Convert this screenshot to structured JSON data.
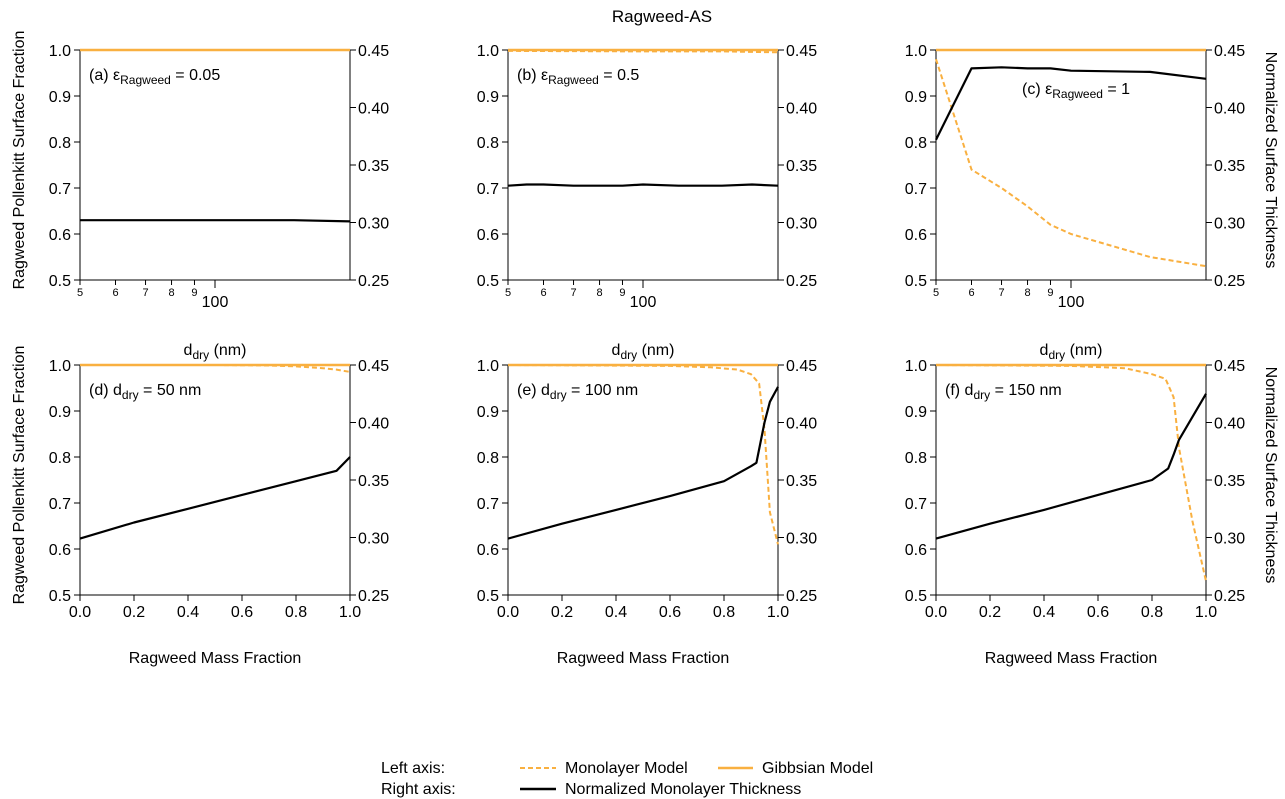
{
  "figure_title": "Ragweed-AS",
  "colors": {
    "monolayer": "#F9B040",
    "gibbsian": "#F9B040",
    "thickness": "#000000"
  },
  "legend": {
    "left_axis_label": "Left axis:",
    "right_axis_label": "Right axis:",
    "monolayer_label": "Monolayer Model",
    "gibbsian_label": "Gibbsian Model",
    "thickness_label": "Normalized Monolayer Thickness"
  },
  "row_labels": {
    "left": "Ragweed Pollenkitt Surface Fraction",
    "right": "Normalized Surface Thickness"
  },
  "chart_data": [
    {
      "type": "line",
      "panel": "(a)",
      "annotation": {
        "prefix": "(a) ε",
        "sub": "Ragweed",
        "suffix": " = 0.05"
      },
      "x_scale": "log",
      "xlim": [
        50,
        200
      ],
      "xlabel": "d",
      "xlabel_sub": "dry",
      "xlabel_suffix": " (nm)",
      "xticks": [
        50,
        60,
        70,
        80,
        90,
        100
      ],
      "xtick_labels": [
        "5",
        "6",
        "7",
        "8",
        "9",
        "100"
      ],
      "ylim": [
        0.5,
        1.0
      ],
      "yticks": [
        "0.5",
        "0.6",
        "0.7",
        "0.8",
        "0.9",
        "1.0"
      ],
      "y2lim": [
        0.25,
        0.45
      ],
      "y2ticks": [
        "0.25",
        "0.30",
        "0.35",
        "0.40",
        "0.45"
      ],
      "series": [
        {
          "name": "Monolayer Model",
          "axis": "left",
          "style": "dashed",
          "x": [
            50,
            200
          ],
          "y": [
            1.0,
            1.0
          ]
        },
        {
          "name": "Gibbsian Model",
          "axis": "left",
          "style": "solid",
          "x": [
            50,
            200
          ],
          "y": [
            1.0,
            1.0
          ]
        },
        {
          "name": "Normalized Monolayer Thickness",
          "axis": "right",
          "style": "solid",
          "x": [
            50,
            60,
            70,
            80,
            90,
            100,
            150,
            200
          ],
          "y": [
            0.302,
            0.302,
            0.302,
            0.302,
            0.302,
            0.302,
            0.302,
            0.301
          ]
        }
      ]
    },
    {
      "type": "line",
      "panel": "(b)",
      "annotation": {
        "prefix": "(b) ε",
        "sub": "Ragweed",
        "suffix": " = 0.5"
      },
      "x_scale": "log",
      "xlim": [
        50,
        200
      ],
      "xlabel": "d",
      "xlabel_sub": "dry",
      "xlabel_suffix": " (nm)",
      "xticks": [
        50,
        60,
        70,
        80,
        90,
        100
      ],
      "xtick_labels": [
        "5",
        "6",
        "7",
        "8",
        "9",
        "100"
      ],
      "ylim": [
        0.5,
        1.0
      ],
      "yticks": [
        "0.5",
        "0.6",
        "0.7",
        "0.8",
        "0.9",
        "1.0"
      ],
      "y2lim": [
        0.25,
        0.45
      ],
      "y2ticks": [
        "0.25",
        "0.30",
        "0.35",
        "0.40",
        "0.45"
      ],
      "series": [
        {
          "name": "Monolayer Model",
          "axis": "left",
          "style": "dashed",
          "x": [
            50,
            100,
            150,
            200
          ],
          "y": [
            0.998,
            0.997,
            0.997,
            0.995
          ]
        },
        {
          "name": "Gibbsian Model",
          "axis": "left",
          "style": "solid",
          "x": [
            50,
            200
          ],
          "y": [
            1.0,
            1.0
          ]
        },
        {
          "name": "Normalized Monolayer Thickness",
          "axis": "right",
          "style": "solid",
          "x": [
            50,
            55,
            60,
            70,
            80,
            90,
            100,
            120,
            150,
            175,
            200
          ],
          "y": [
            0.332,
            0.333,
            0.333,
            0.332,
            0.332,
            0.332,
            0.333,
            0.332,
            0.332,
            0.333,
            0.332
          ]
        }
      ]
    },
    {
      "type": "line",
      "panel": "(c)",
      "annotation": {
        "prefix": "(c) ε",
        "sub": "Ragweed",
        "suffix": " = 1"
      },
      "x_scale": "log",
      "xlim": [
        50,
        200
      ],
      "xlabel": "d",
      "xlabel_sub": "dry",
      "xlabel_suffix": " (nm)",
      "xticks": [
        50,
        60,
        70,
        80,
        90,
        100
      ],
      "xtick_labels": [
        "5",
        "6",
        "7",
        "8",
        "9",
        "100"
      ],
      "ylim": [
        0.5,
        1.0
      ],
      "yticks": [
        "0.5",
        "0.6",
        "0.7",
        "0.8",
        "0.9",
        "1.0"
      ],
      "y2lim": [
        0.25,
        0.45
      ],
      "y2ticks": [
        "0.25",
        "0.30",
        "0.35",
        "0.40",
        "0.45"
      ],
      "series": [
        {
          "name": "Monolayer Model",
          "axis": "left",
          "style": "dashed",
          "x": [
            50,
            60,
            70,
            80,
            90,
            100,
            150,
            200
          ],
          "y": [
            0.98,
            0.74,
            0.7,
            0.66,
            0.62,
            0.6,
            0.55,
            0.53
          ]
        },
        {
          "name": "Gibbsian Model",
          "axis": "left",
          "style": "solid",
          "x": [
            50,
            200
          ],
          "y": [
            1.0,
            1.0
          ]
        },
        {
          "name": "Normalized Monolayer Thickness",
          "axis": "right",
          "style": "solid",
          "x": [
            50,
            60,
            70,
            80,
            90,
            100,
            150,
            200
          ],
          "y": [
            0.372,
            0.434,
            0.435,
            0.434,
            0.434,
            0.432,
            0.431,
            0.425
          ]
        }
      ]
    },
    {
      "type": "line",
      "panel": "(d)",
      "annotation": {
        "prefix": "(d) d",
        "sub": "dry",
        "suffix": " = 50 nm"
      },
      "x_scale": "linear",
      "xlim": [
        0,
        1
      ],
      "xlabel": "Ragweed Mass Fraction",
      "xticks": [
        0,
        0.2,
        0.4,
        0.6,
        0.8,
        1.0
      ],
      "xtick_labels": [
        "0.0",
        "0.2",
        "0.4",
        "0.6",
        "0.8",
        "1.0"
      ],
      "ylim": [
        0.5,
        1.0
      ],
      "yticks": [
        "0.5",
        "0.6",
        "0.7",
        "0.8",
        "0.9",
        "1.0"
      ],
      "y2lim": [
        0.25,
        0.45
      ],
      "y2ticks": [
        "0.25",
        "0.30",
        "0.35",
        "0.40",
        "0.45"
      ],
      "series": [
        {
          "name": "Monolayer Model",
          "axis": "left",
          "style": "dashed",
          "x": [
            0,
            0.5,
            0.7,
            0.8,
            0.9,
            0.95,
            1.0
          ],
          "y": [
            1.0,
            1.0,
            0.999,
            0.997,
            0.993,
            0.99,
            0.985
          ]
        },
        {
          "name": "Gibbsian Model",
          "axis": "left",
          "style": "solid",
          "x": [
            0,
            1
          ],
          "y": [
            1.0,
            1.0
          ]
        },
        {
          "name": "Normalized Monolayer Thickness",
          "axis": "right",
          "style": "solid",
          "x": [
            0,
            0.2,
            0.4,
            0.6,
            0.8,
            0.95,
            1.0
          ],
          "y": [
            0.299,
            0.313,
            0.325,
            0.337,
            0.349,
            0.358,
            0.37
          ]
        }
      ]
    },
    {
      "type": "line",
      "panel": "(e)",
      "annotation": {
        "prefix": "(e) d",
        "sub": "dry",
        "suffix": " = 100 nm"
      },
      "x_scale": "linear",
      "xlim": [
        0,
        1
      ],
      "xlabel": "Ragweed Mass Fraction",
      "xticks": [
        0,
        0.2,
        0.4,
        0.6,
        0.8,
        1.0
      ],
      "xtick_labels": [
        "0.0",
        "0.2",
        "0.4",
        "0.6",
        "0.8",
        "1.0"
      ],
      "ylim": [
        0.5,
        1.0
      ],
      "yticks": [
        "0.5",
        "0.6",
        "0.7",
        "0.8",
        "0.9",
        "1.0"
      ],
      "y2lim": [
        0.25,
        0.45
      ],
      "y2ticks": [
        "0.25",
        "0.30",
        "0.35",
        "0.40",
        "0.45"
      ],
      "series": [
        {
          "name": "Monolayer Model",
          "axis": "left",
          "style": "dashed",
          "x": [
            0,
            0.6,
            0.75,
            0.85,
            0.9,
            0.93,
            0.95,
            0.97,
            1.0
          ],
          "y": [
            1.0,
            0.998,
            0.995,
            0.99,
            0.98,
            0.96,
            0.86,
            0.68,
            0.61
          ]
        },
        {
          "name": "Gibbsian Model",
          "axis": "left",
          "style": "solid",
          "x": [
            0,
            1
          ],
          "y": [
            1.0,
            1.0
          ]
        },
        {
          "name": "Normalized Monolayer Thickness",
          "axis": "right",
          "style": "solid",
          "x": [
            0,
            0.2,
            0.4,
            0.6,
            0.8,
            0.9,
            0.92,
            0.95,
            0.97,
            1.0
          ],
          "y": [
            0.299,
            0.312,
            0.324,
            0.336,
            0.349,
            0.362,
            0.365,
            0.4,
            0.418,
            0.431
          ]
        }
      ]
    },
    {
      "type": "line",
      "panel": "(f)",
      "annotation": {
        "prefix": "(f) d",
        "sub": "dry",
        "suffix": " = 150 nm"
      },
      "x_scale": "linear",
      "xlim": [
        0,
        1
      ],
      "xlabel": "Ragweed Mass Fraction",
      "xticks": [
        0,
        0.2,
        0.4,
        0.6,
        0.8,
        1.0
      ],
      "xtick_labels": [
        "0.0",
        "0.2",
        "0.4",
        "0.6",
        "0.8",
        "1.0"
      ],
      "ylim": [
        0.5,
        1.0
      ],
      "yticks": [
        "0.5",
        "0.6",
        "0.7",
        "0.8",
        "0.9",
        "1.0"
      ],
      "y2lim": [
        0.25,
        0.45
      ],
      "y2ticks": [
        "0.25",
        "0.30",
        "0.35",
        "0.40",
        "0.45"
      ],
      "series": [
        {
          "name": "Monolayer Model",
          "axis": "left",
          "style": "dashed",
          "x": [
            0,
            0.5,
            0.7,
            0.8,
            0.85,
            0.88,
            0.9,
            0.95,
            1.0
          ],
          "y": [
            1.0,
            0.998,
            0.993,
            0.98,
            0.97,
            0.93,
            0.82,
            0.66,
            0.53
          ]
        },
        {
          "name": "Gibbsian Model",
          "axis": "left",
          "style": "solid",
          "x": [
            0,
            1
          ],
          "y": [
            1.0,
            1.0
          ]
        },
        {
          "name": "Normalized Monolayer Thickness",
          "axis": "right",
          "style": "solid",
          "x": [
            0,
            0.2,
            0.4,
            0.6,
            0.8,
            0.86,
            0.88,
            0.9,
            0.95,
            1.0
          ],
          "y": [
            0.299,
            0.312,
            0.324,
            0.337,
            0.35,
            0.36,
            0.372,
            0.385,
            0.405,
            0.425
          ]
        }
      ]
    }
  ]
}
